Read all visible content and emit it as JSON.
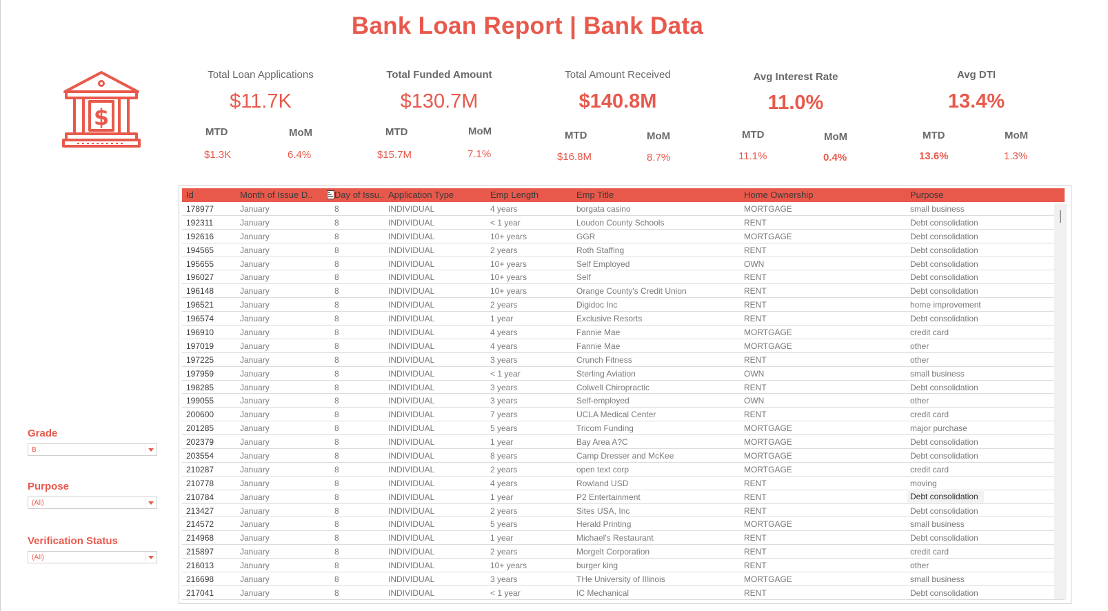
{
  "title": "Bank Loan Report | Bank Data",
  "logo_icon": "bank-dollar-icon",
  "colors": {
    "accent": "#e8594c",
    "label": "#6a6a6a"
  },
  "kpis": [
    {
      "title": "Total Loan Applications",
      "value": "$11.7K",
      "mtd_label": "MTD",
      "mtd": "$1.3K",
      "mom_label": "MoM",
      "mom": "6.4%"
    },
    {
      "title": "Total Funded Amount",
      "value": "$130.7M",
      "mtd_label": "MTD",
      "mtd": "$15.7M",
      "mom_label": "MoM",
      "mom": "7.1%"
    },
    {
      "title": "Total Amount Received",
      "value": "$140.8M",
      "mtd_label": "MTD",
      "mtd": "$16.8M",
      "mom_label": "MoM",
      "mom": "8.7%"
    },
    {
      "title": "Avg Interest Rate",
      "value": "11.0%",
      "mtd_label": "MTD",
      "mtd": "11.1%",
      "mom_label": "MoM",
      "mom": "0.4%"
    },
    {
      "title": "Avg DTI",
      "value": "13.4%",
      "mtd_label": "MTD",
      "mtd": "13.6%",
      "mom_label": "MoM",
      "mom": "1.3%"
    }
  ],
  "filters": [
    {
      "label": "Grade",
      "value": "B"
    },
    {
      "label": "Purpose",
      "value": "(All)"
    },
    {
      "label": "Verification Status",
      "value": "(All)"
    }
  ],
  "table": {
    "columns": [
      "Id",
      "Month of Issue D..",
      "Day of Issu..",
      "Application Type",
      "Emp Length",
      "Emp Title",
      "Home Ownership",
      "Purpose"
    ],
    "rows": [
      [
        "178977",
        "January",
        "8",
        "INDIVIDUAL",
        "4 years",
        "borgata casino",
        "MORTGAGE",
        "small business"
      ],
      [
        "192311",
        "January",
        "8",
        "INDIVIDUAL",
        "< 1 year",
        "Loudon County Schools",
        "RENT",
        "Debt consolidation"
      ],
      [
        "192616",
        "January",
        "8",
        "INDIVIDUAL",
        "10+ years",
        "GGR",
        "MORTGAGE",
        "Debt consolidation"
      ],
      [
        "194565",
        "January",
        "8",
        "INDIVIDUAL",
        "2 years",
        "Roth Staffing",
        "RENT",
        "Debt consolidation"
      ],
      [
        "195655",
        "January",
        "8",
        "INDIVIDUAL",
        "10+ years",
        "Self Employed",
        "OWN",
        "Debt consolidation"
      ],
      [
        "196027",
        "January",
        "8",
        "INDIVIDUAL",
        "10+ years",
        "Self",
        "RENT",
        "Debt consolidation"
      ],
      [
        "196148",
        "January",
        "8",
        "INDIVIDUAL",
        "10+ years",
        "Orange County's Credit Union",
        "RENT",
        "Debt consolidation"
      ],
      [
        "196521",
        "January",
        "8",
        "INDIVIDUAL",
        "2 years",
        "Digidoc Inc",
        "RENT",
        "home improvement"
      ],
      [
        "196574",
        "January",
        "8",
        "INDIVIDUAL",
        "1 year",
        "Exclusive Resorts",
        "RENT",
        "Debt consolidation"
      ],
      [
        "196910",
        "January",
        "8",
        "INDIVIDUAL",
        "4 years",
        "Fannie Mae",
        "MORTGAGE",
        "credit card"
      ],
      [
        "197019",
        "January",
        "8",
        "INDIVIDUAL",
        "4 years",
        "Fannie Mae",
        "MORTGAGE",
        "other"
      ],
      [
        "197225",
        "January",
        "8",
        "INDIVIDUAL",
        "3 years",
        "Crunch Fitness",
        "RENT",
        "other"
      ],
      [
        "197959",
        "January",
        "8",
        "INDIVIDUAL",
        "< 1 year",
        "Sterling Aviation",
        "OWN",
        "small business"
      ],
      [
        "198285",
        "January",
        "8",
        "INDIVIDUAL",
        "3 years",
        "Colwell Chiropractic",
        "RENT",
        "Debt consolidation"
      ],
      [
        "199055",
        "January",
        "8",
        "INDIVIDUAL",
        "3 years",
        "Self-employed",
        "OWN",
        "other"
      ],
      [
        "200600",
        "January",
        "8",
        "INDIVIDUAL",
        "7 years",
        "UCLA Medical Center",
        "RENT",
        "credit card"
      ],
      [
        "201285",
        "January",
        "8",
        "INDIVIDUAL",
        "5 years",
        "Tricom Funding",
        "MORTGAGE",
        "major purchase"
      ],
      [
        "202379",
        "January",
        "8",
        "INDIVIDUAL",
        "1 year",
        "Bay Area A?C",
        "MORTGAGE",
        "Debt consolidation"
      ],
      [
        "203554",
        "January",
        "8",
        "INDIVIDUAL",
        "8 years",
        "Camp Dresser  and  McKee",
        "MORTGAGE",
        "Debt consolidation"
      ],
      [
        "210287",
        "January",
        "8",
        "INDIVIDUAL",
        "2 years",
        "open text corp",
        "MORTGAGE",
        "credit card"
      ],
      [
        "210778",
        "January",
        "8",
        "INDIVIDUAL",
        "4 years",
        "Rowland USD",
        "RENT",
        "moving"
      ],
      [
        "210784",
        "January",
        "8",
        "INDIVIDUAL",
        "1 year",
        "P2 Entertainment",
        "RENT",
        "Debt consolidation"
      ],
      [
        "213427",
        "January",
        "8",
        "INDIVIDUAL",
        "2 years",
        "Sites USA, Inc",
        "RENT",
        "Debt consolidation"
      ],
      [
        "214572",
        "January",
        "8",
        "INDIVIDUAL",
        "5 years",
        "Herald Printing",
        "MORTGAGE",
        "small business"
      ],
      [
        "214968",
        "January",
        "8",
        "INDIVIDUAL",
        "1 year",
        "Michael's Restaurant",
        "RENT",
        "Debt consolidation"
      ],
      [
        "215897",
        "January",
        "8",
        "INDIVIDUAL",
        "2 years",
        "Morgelt Corporation",
        "RENT",
        "credit card"
      ],
      [
        "216013",
        "January",
        "8",
        "INDIVIDUAL",
        "10+ years",
        "burger king",
        "RENT",
        "other"
      ],
      [
        "216698",
        "January",
        "8",
        "INDIVIDUAL",
        "3 years",
        "THe University of Illinois",
        "MORTGAGE",
        "small business"
      ],
      [
        "217041",
        "January",
        "8",
        "INDIVIDUAL",
        "< 1 year",
        "IC Mechanical",
        "RENT",
        "Debt consolidation"
      ]
    ]
  }
}
